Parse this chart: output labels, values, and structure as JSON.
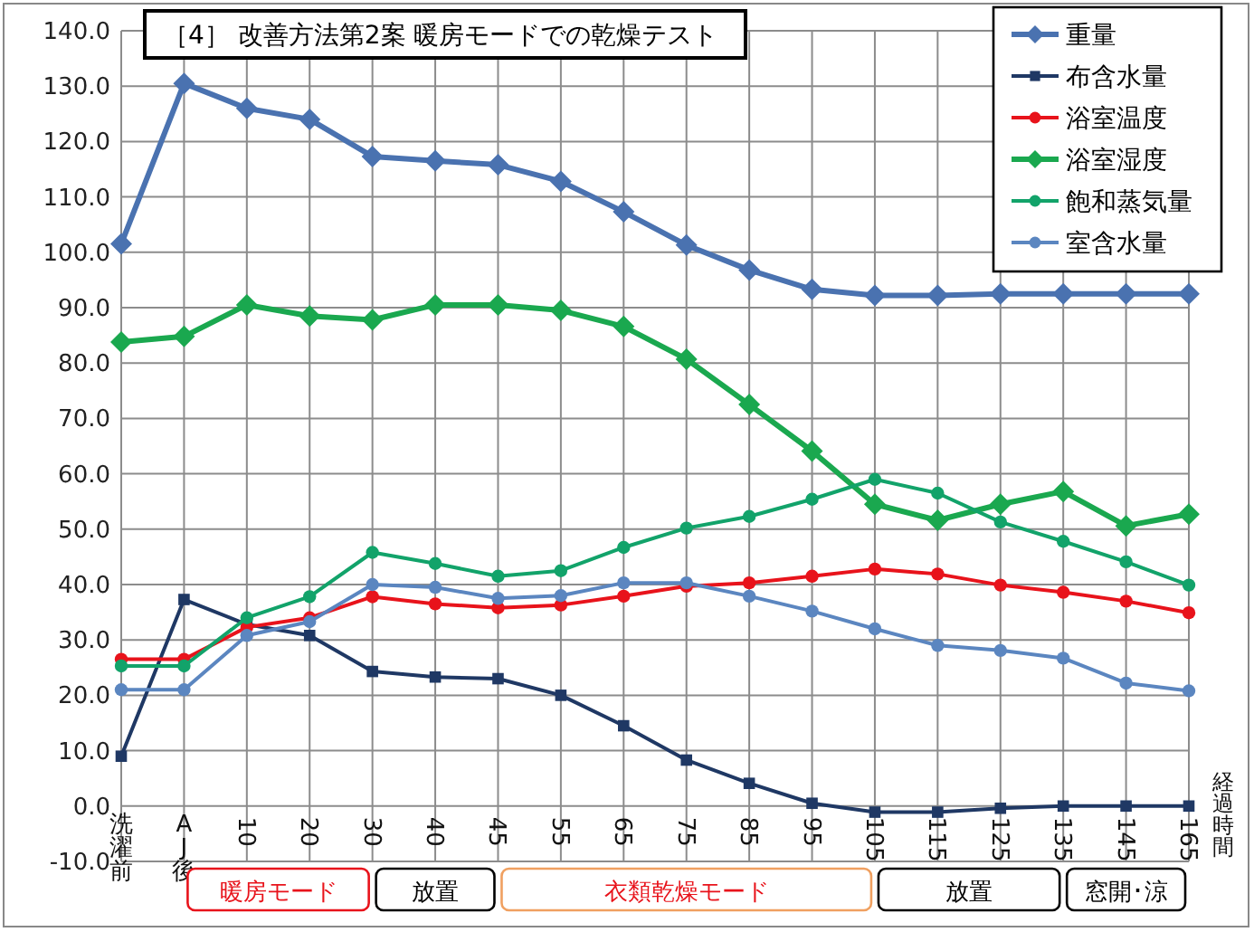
{
  "chart_data": {
    "type": "line",
    "title": "［4］ 改善方法第2案  暖房モードでの乾燥テスト",
    "xlabel": "経過時間",
    "categories": [
      "洗濯前",
      "AJ後",
      "10",
      "20",
      "30",
      "40",
      "45",
      "55",
      "65",
      "75",
      "85",
      "95",
      "105",
      "115",
      "125",
      "135",
      "145",
      "165"
    ],
    "ylim": [
      -10,
      140
    ],
    "yticks": [
      {
        "value": -10,
        "label": "-10.0"
      },
      {
        "value": 0,
        "label": "0.0"
      },
      {
        "value": 10,
        "label": "10.0"
      },
      {
        "value": 20,
        "label": "20.0"
      },
      {
        "value": 30,
        "label": "30.0"
      },
      {
        "value": 40,
        "label": "40.0"
      },
      {
        "value": 50,
        "label": "50.0"
      },
      {
        "value": 60,
        "label": "60.0"
      },
      {
        "value": 70,
        "label": "70.0"
      },
      {
        "value": 80,
        "label": "80.0"
      },
      {
        "value": 90,
        "label": "90.0"
      },
      {
        "value": 100,
        "label": "100.0"
      },
      {
        "value": 110,
        "label": "110.0"
      },
      {
        "value": 120,
        "label": "120.0"
      },
      {
        "value": 130,
        "label": "130.0"
      },
      {
        "value": 140,
        "label": "140.0"
      }
    ],
    "grid": true,
    "legend": "top right",
    "series": [
      {
        "name": "重量",
        "color": "#4a72b0",
        "marker": "diamond",
        "values": [
          101.5,
          130.5,
          126,
          124,
          117.3,
          116.5,
          115.8,
          112.8,
          107.3,
          101.3,
          96.8,
          93.3,
          92.2,
          92.2,
          92.5,
          92.5,
          92.5,
          92.5
        ]
      },
      {
        "name": "布含水量",
        "color": "#1f3864",
        "marker": "square",
        "values": [
          9,
          37.3,
          32.8,
          30.8,
          24.3,
          23.3,
          23,
          20,
          14.5,
          8.3,
          4.1,
          0.5,
          -1.1,
          -1.1,
          -0.4,
          0,
          0,
          0
        ]
      },
      {
        "name": "浴室温度",
        "color": "#e8131b",
        "marker": "circle",
        "values": [
          26.5,
          26.5,
          32.3,
          34,
          37.8,
          36.5,
          35.8,
          36.3,
          37.9,
          39.7,
          40.3,
          41.5,
          42.8,
          41.9,
          39.9,
          38.6,
          37,
          34.9
        ]
      },
      {
        "name": "浴室湿度",
        "color": "#1aa84f",
        "marker": "diamond",
        "values": [
          83.8,
          84.8,
          90.5,
          88.5,
          87.8,
          90.5,
          90.5,
          89.5,
          86.6,
          80.7,
          72.5,
          64.1,
          54.5,
          51.6,
          54.5,
          56.8,
          50.6,
          52.7
        ]
      },
      {
        "name": "飽和蒸気量",
        "color": "#12a36a",
        "marker": "circle",
        "values": [
          25.3,
          25.3,
          34,
          37.8,
          45.8,
          43.8,
          41.5,
          42.5,
          46.7,
          50.2,
          52.3,
          55.4,
          59,
          56.5,
          51.3,
          47.8,
          44.1,
          39.9
        ]
      },
      {
        "name": "室含水量",
        "color": "#5b86c0",
        "marker": "circle",
        "values": [
          21,
          21,
          30.8,
          33.3,
          40,
          39.5,
          37.5,
          38,
          40.3,
          40.3,
          37.9,
          35.2,
          32,
          29,
          28.1,
          26.7,
          22.2,
          20.8
        ]
      }
    ],
    "annotations": [
      "暖房モード",
      "放置",
      "衣類乾燥モード",
      "放置",
      "窓開･涼"
    ]
  }
}
